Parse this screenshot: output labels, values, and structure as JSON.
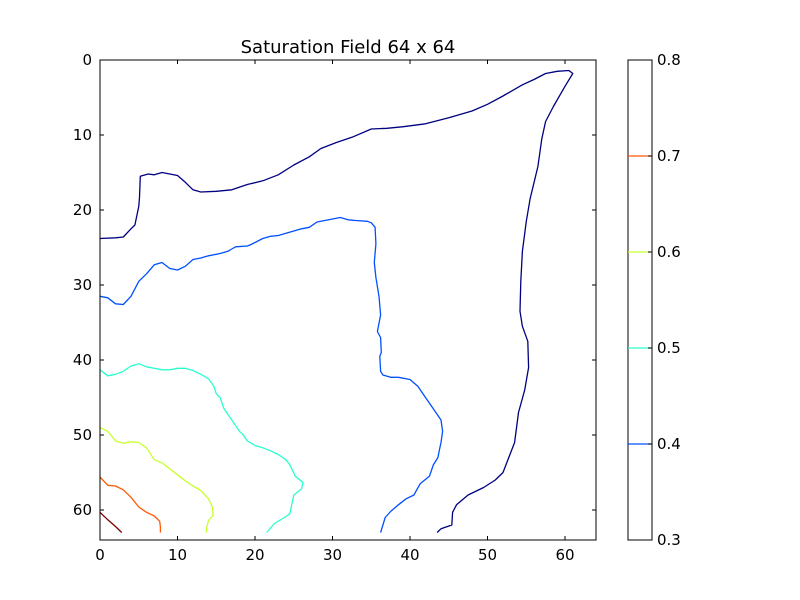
{
  "chart_data": {
    "type": "contour",
    "title": "Saturation Field 64 x 64",
    "xlabel": "",
    "ylabel": "",
    "xlim": [
      0,
      64
    ],
    "ylim": [
      64,
      0
    ],
    "y_inverted": true,
    "grid": false,
    "x_ticks": [
      0,
      10,
      20,
      30,
      40,
      50,
      60
    ],
    "y_ticks": [
      0,
      10,
      20,
      30,
      40,
      50,
      60
    ],
    "colorbar": {
      "range": [
        0.3,
        0.8
      ],
      "ticks": [
        0.8,
        0.7,
        0.6,
        0.5,
        0.4,
        0.3
      ],
      "tick_labels": [
        "0.8",
        "0.7",
        "0.6",
        "0.5",
        "0.4",
        "0.3"
      ],
      "marked_levels": [
        {
          "level": 0.7,
          "color": "#ff5a00"
        },
        {
          "level": 0.6,
          "color": "#c8ff2e"
        },
        {
          "level": 0.5,
          "color": "#29ffce"
        },
        {
          "level": 0.4,
          "color": "#0050ff"
        }
      ]
    },
    "series": [
      {
        "level": 0.3,
        "color": "#000080",
        "points": [
          [
            0,
            23.8
          ],
          [
            2,
            23.7
          ],
          [
            3,
            23.6
          ],
          [
            4,
            22.5
          ],
          [
            4.5,
            22
          ],
          [
            5,
            19.5
          ],
          [
            5.1,
            18.3
          ],
          [
            5.2,
            15.5
          ],
          [
            6.2,
            15.2
          ],
          [
            7,
            15.3
          ],
          [
            8,
            15
          ],
          [
            9,
            15.2
          ],
          [
            10,
            15.4
          ],
          [
            11,
            16.3
          ],
          [
            12,
            17.3
          ],
          [
            13,
            17.6
          ],
          [
            15,
            17.5
          ],
          [
            17,
            17.3
          ],
          [
            19,
            16.6
          ],
          [
            21,
            16.1
          ],
          [
            23,
            15.3
          ],
          [
            25,
            14
          ],
          [
            27,
            12.9
          ],
          [
            28.5,
            11.8
          ],
          [
            30.5,
            11
          ],
          [
            32.5,
            10.3
          ],
          [
            35,
            9.2
          ],
          [
            37,
            9.1
          ],
          [
            39,
            8.9
          ],
          [
            42,
            8.5
          ],
          [
            45,
            7.7
          ],
          [
            48,
            6.8
          ],
          [
            50,
            5.9
          ],
          [
            52,
            4.8
          ],
          [
            54.5,
            3.3
          ],
          [
            56,
            2.6
          ],
          [
            57.5,
            1.8
          ],
          [
            59,
            1.5
          ],
          [
            60.5,
            1.4
          ],
          [
            61,
            1.8
          ],
          [
            60,
            3.5
          ],
          [
            58.5,
            6.2
          ],
          [
            57.5,
            8.2
          ],
          [
            57,
            10.5
          ],
          [
            56.5,
            14.2
          ],
          [
            55.5,
            18.5
          ],
          [
            55,
            21.5
          ],
          [
            54.5,
            25.5
          ],
          [
            54.3,
            29.5
          ],
          [
            54.2,
            33.5
          ],
          [
            54.5,
            35.5
          ],
          [
            55.2,
            37.5
          ],
          [
            55.3,
            41
          ],
          [
            54.8,
            44
          ],
          [
            54,
            47
          ],
          [
            53.5,
            51
          ],
          [
            52,
            55
          ],
          [
            51,
            56
          ],
          [
            49.5,
            57
          ],
          [
            47.5,
            58
          ],
          [
            46,
            59.3
          ],
          [
            45.5,
            60.3
          ],
          [
            45.4,
            62
          ],
          [
            44,
            62.5
          ],
          [
            43.5,
            63
          ]
        ]
      },
      {
        "level": 0.4,
        "color": "#0050ff",
        "points": [
          [
            0,
            31.5
          ],
          [
            1,
            31.7
          ],
          [
            2,
            32.5
          ],
          [
            3,
            32.6
          ],
          [
            4,
            31.5
          ],
          [
            5,
            29.5
          ],
          [
            6,
            28.5
          ],
          [
            7,
            27.3
          ],
          [
            8,
            27
          ],
          [
            9,
            27.8
          ],
          [
            10,
            28
          ],
          [
            11,
            27.5
          ],
          [
            12,
            26.6
          ],
          [
            13,
            26.4
          ],
          [
            14,
            26.1
          ],
          [
            15.5,
            25.8
          ],
          [
            16.5,
            25.5
          ],
          [
            17,
            25.2
          ],
          [
            17.5,
            24.9
          ],
          [
            19,
            24.8
          ],
          [
            19.5,
            24.6
          ],
          [
            21,
            23.8
          ],
          [
            22,
            23.5
          ],
          [
            23,
            23.4
          ],
          [
            24,
            23.1
          ],
          [
            25,
            22.8
          ],
          [
            26,
            22.5
          ],
          [
            27,
            22.3
          ],
          [
            28,
            21.6
          ],
          [
            29,
            21.4
          ],
          [
            30,
            21.2
          ],
          [
            31,
            21
          ],
          [
            32,
            21.3
          ],
          [
            33,
            21.4
          ],
          [
            34.5,
            21.5
          ],
          [
            35,
            21.7
          ],
          [
            35.5,
            22.3
          ],
          [
            35.6,
            24.5
          ],
          [
            35.4,
            27
          ],
          [
            35.6,
            29
          ],
          [
            36,
            31.5
          ],
          [
            36.2,
            34
          ],
          [
            35.8,
            36.2
          ],
          [
            36.2,
            37
          ],
          [
            36.3,
            39
          ],
          [
            36.1,
            39.5
          ],
          [
            36.2,
            41.5
          ],
          [
            36.5,
            42
          ],
          [
            37.5,
            42.3
          ],
          [
            38.5,
            42.3
          ],
          [
            40,
            42.6
          ],
          [
            41,
            43.5
          ],
          [
            42,
            45
          ],
          [
            43,
            46.5
          ],
          [
            44,
            48
          ],
          [
            44.2,
            49.5
          ],
          [
            44,
            51
          ],
          [
            43.8,
            52
          ],
          [
            43.6,
            53
          ],
          [
            43,
            54
          ],
          [
            42.5,
            55.5
          ],
          [
            41.3,
            56.5
          ],
          [
            40.5,
            58
          ],
          [
            39.5,
            58.5
          ],
          [
            38.5,
            59.3
          ],
          [
            37.5,
            60.2
          ],
          [
            36.8,
            61
          ],
          [
            36.5,
            62
          ],
          [
            36.2,
            63
          ]
        ]
      },
      {
        "level": 0.5,
        "color": "#29ffce",
        "points": [
          [
            0,
            41.3
          ],
          [
            1,
            42.1
          ],
          [
            2,
            41.9
          ],
          [
            3,
            41.5
          ],
          [
            4,
            40.8
          ],
          [
            5,
            40.5
          ],
          [
            6,
            40.9
          ],
          [
            7,
            41.1
          ],
          [
            8,
            41.3
          ],
          [
            9,
            41.3
          ],
          [
            10,
            41.1
          ],
          [
            11,
            41.1
          ],
          [
            12,
            41.4
          ],
          [
            13,
            41.9
          ],
          [
            14,
            42.5
          ],
          [
            14.7,
            43.5
          ],
          [
            15,
            44.5
          ],
          [
            15.5,
            45
          ],
          [
            16,
            46.5
          ],
          [
            17,
            48
          ],
          [
            18,
            49.5
          ],
          [
            18.5,
            50
          ],
          [
            19,
            50.8
          ],
          [
            20,
            51.4
          ],
          [
            21,
            51.7
          ],
          [
            22,
            52.1
          ],
          [
            23,
            52.6
          ],
          [
            24,
            53.3
          ],
          [
            24.5,
            54
          ],
          [
            25.2,
            55.5
          ],
          [
            26.2,
            56.3
          ],
          [
            26,
            57.2
          ],
          [
            25,
            58
          ],
          [
            24.7,
            59.5
          ],
          [
            24.5,
            60.5
          ],
          [
            23.8,
            61
          ],
          [
            22.5,
            61.8
          ],
          [
            21.5,
            63
          ]
        ]
      },
      {
        "level": 0.6,
        "color": "#c8ff2e",
        "points": [
          [
            0,
            49
          ],
          [
            1,
            49.5
          ],
          [
            2,
            50.8
          ],
          [
            3,
            51.1
          ],
          [
            4,
            50.9
          ],
          [
            5,
            51
          ],
          [
            6,
            51.7
          ],
          [
            7,
            53.3
          ],
          [
            8,
            53.7
          ],
          [
            9,
            54.5
          ],
          [
            10,
            55.3
          ],
          [
            11,
            56.1
          ],
          [
            12,
            56.8
          ],
          [
            13,
            57.4
          ],
          [
            14,
            58.5
          ],
          [
            14.5,
            59.6
          ],
          [
            14.6,
            60.7
          ],
          [
            14,
            61.4
          ],
          [
            13.8,
            62.2
          ],
          [
            13.7,
            63
          ]
        ]
      },
      {
        "level": 0.7,
        "color": "#ff5a00",
        "points": [
          [
            0,
            55.6
          ],
          [
            1,
            56.7
          ],
          [
            2,
            56.8
          ],
          [
            3,
            57.3
          ],
          [
            4,
            58.3
          ],
          [
            5,
            59.6
          ],
          [
            6,
            60.3
          ],
          [
            7,
            60.8
          ],
          [
            7.7,
            61.5
          ],
          [
            7.8,
            62.3
          ],
          [
            7.8,
            63
          ]
        ]
      },
      {
        "level": 0.8,
        "color": "#800000",
        "points": [
          [
            0,
            60.3
          ],
          [
            1,
            61.3
          ],
          [
            2,
            62.2
          ],
          [
            2.8,
            63
          ]
        ]
      }
    ]
  }
}
